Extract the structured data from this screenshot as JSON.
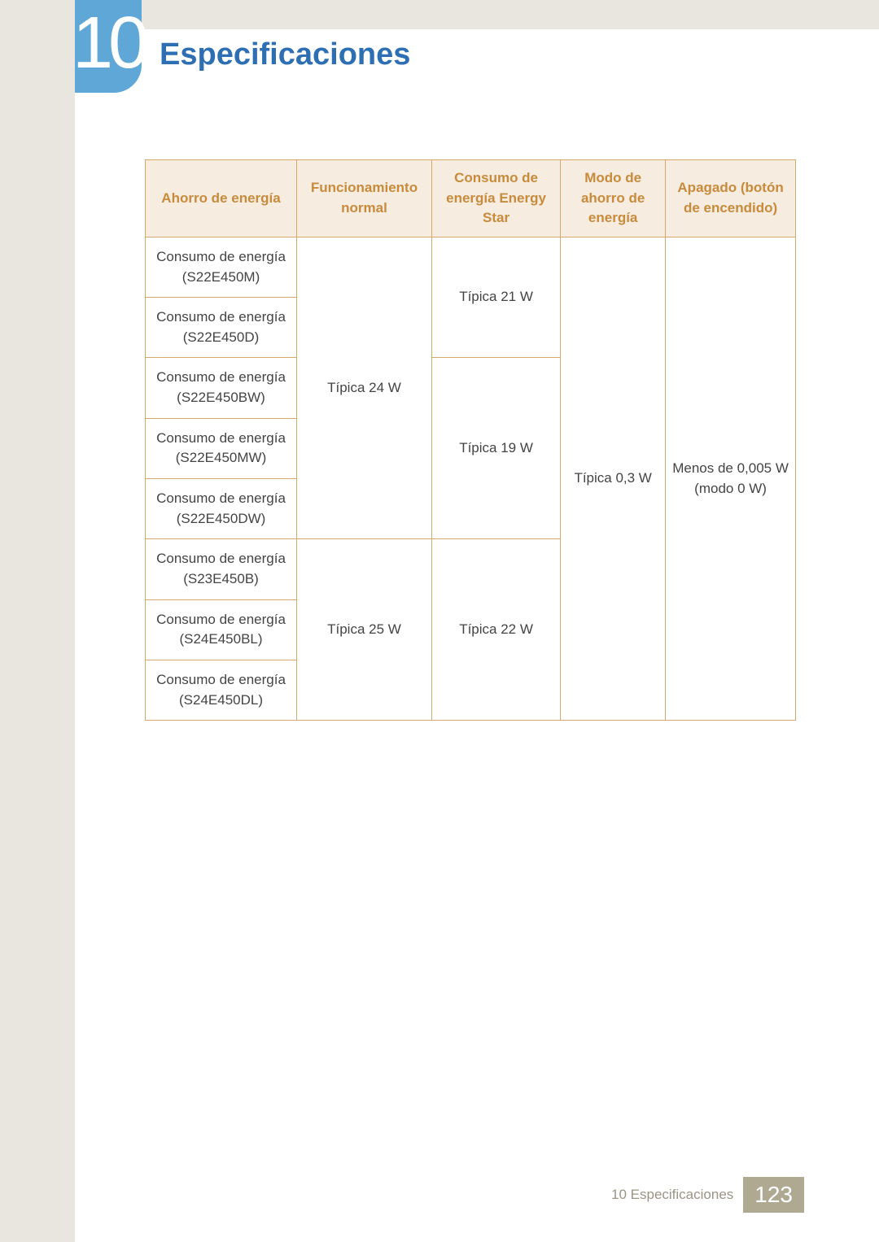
{
  "chapter": {
    "number": "10",
    "title": "Especificaciones",
    "title_color": "#2e6fb4",
    "badge_bg": "#5ea7d6"
  },
  "table": {
    "border_color": "#d4a96a",
    "header_bg": "#f6ece0",
    "header_color": "#c78b3b",
    "columns": [
      "Ahorro de energía",
      "Funcionamiento normal",
      "Consumo de energía Energy Star",
      "Modo de ahorro de energía",
      "Apagado (botón de encendido)"
    ],
    "row_labels": [
      "Consumo de energía (S22E450M)",
      "Consumo de energía (S22E450D)",
      "Consumo de energía (S22E450BW)",
      "Consumo de energía (S22E450MW)",
      "Consumo de energía (S22E450DW)",
      "Consumo de energía (S23E450B)",
      "Consumo de energía (S24E450BL)",
      "Consumo de energía (S24E450DL)"
    ],
    "func_normal_group1": "Típica 24 W",
    "func_normal_group2": "Típica 25 W",
    "energy_star_group1": "Típica 21 W",
    "energy_star_group2": "Típica 19 W",
    "energy_star_group3": "Típica 22 W",
    "ahorro_mode": "Típica 0,3 W",
    "apagado": "Menos de 0,005 W (modo 0 W)"
  },
  "footer": {
    "text": "10 Especificaciones",
    "page": "123",
    "page_bg": "#b0a992"
  },
  "colors": {
    "sidebar_bg": "#e8e6df"
  }
}
